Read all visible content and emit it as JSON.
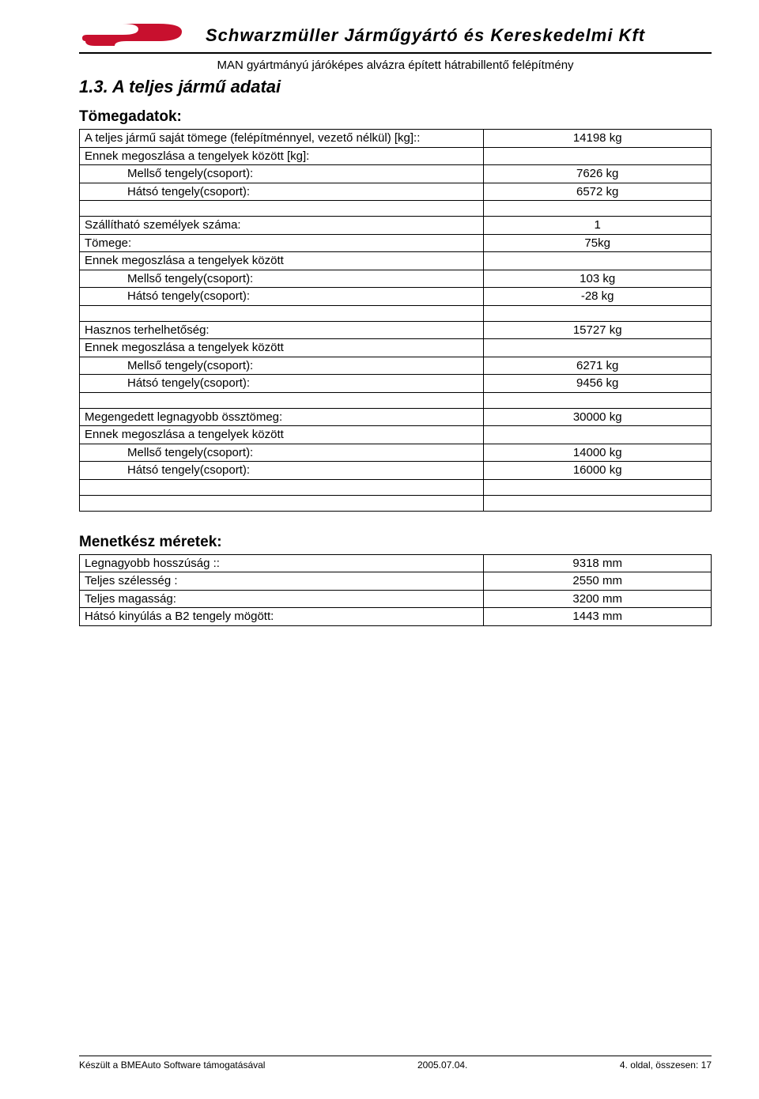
{
  "header": {
    "company": "Schwarzmüller Járműgyártó és Kereskedelmi Kft",
    "subtitle": "MAN gyártmányú járóképes alvázra épített hátrabillentő felépítmény",
    "logo_color": "#c8102e"
  },
  "section_title": "1.3. A teljes jármű adatai",
  "mass": {
    "heading": "Tömegadatok:",
    "rows": [
      {
        "label": "A teljes jármű saját tömege (felépítménnyel, vezető nélkül) [kg]::",
        "value": "14198 kg",
        "indent": false
      },
      {
        "label": "Ennek megoszlása a tengelyek között [kg]:",
        "value": "",
        "indent": false
      },
      {
        "label": "Mellső tengely(csoport):",
        "value": "7626 kg",
        "indent": true
      },
      {
        "label": "Hátsó tengely(csoport):",
        "value": "6572 kg",
        "indent": true
      },
      {
        "empty": true
      },
      {
        "label": "Szállítható személyek száma:",
        "value": "1",
        "indent": false
      },
      {
        "label": "Tömege:",
        "value": "75kg",
        "indent": false
      },
      {
        "label": "Ennek megoszlása a tengelyek között",
        "value": "",
        "indent": false
      },
      {
        "label": "Mellső tengely(csoport):",
        "value": "103 kg",
        "indent": true
      },
      {
        "label": "Hátsó tengely(csoport):",
        "value": "-28 kg",
        "indent": true
      },
      {
        "empty": true
      },
      {
        "label": "Hasznos terhelhetőség:",
        "value": "15727 kg",
        "indent": false
      },
      {
        "label": "Ennek megoszlása a tengelyek között",
        "value": "",
        "indent": false
      },
      {
        "label": "Mellső tengely(csoport):",
        "value": "6271 kg",
        "indent": true
      },
      {
        "label": "Hátsó tengely(csoport):",
        "value": "9456 kg",
        "indent": true
      },
      {
        "empty": true
      },
      {
        "label": "Megengedett legnagyobb össztömeg:",
        "value": "30000 kg",
        "indent": false
      },
      {
        "label": "Ennek megoszlása a tengelyek között",
        "value": "",
        "indent": false
      },
      {
        "label": "Mellső tengely(csoport):",
        "value": "14000 kg",
        "indent": true
      },
      {
        "label": "Hátsó tengely(csoport):",
        "value": "16000 kg",
        "indent": true
      },
      {
        "empty": true
      },
      {
        "empty": true
      }
    ]
  },
  "dims": {
    "heading": "Menetkész méretek:",
    "rows": [
      {
        "label": "Legnagyobb hosszúság ::",
        "value": "9318  mm"
      },
      {
        "label": "Teljes szélesség :",
        "value": "2550  mm"
      },
      {
        "label": "Teljes magasság:",
        "value": "3200 mm"
      },
      {
        "label": "Hátsó kinyúlás a B2 tengely mögött:",
        "value": "1443 mm"
      }
    ]
  },
  "footer": {
    "left": "Készült a BMEAuto Software támogatásával",
    "center": "2005.07.04.",
    "right": "4. oldal, összesen: 17"
  }
}
